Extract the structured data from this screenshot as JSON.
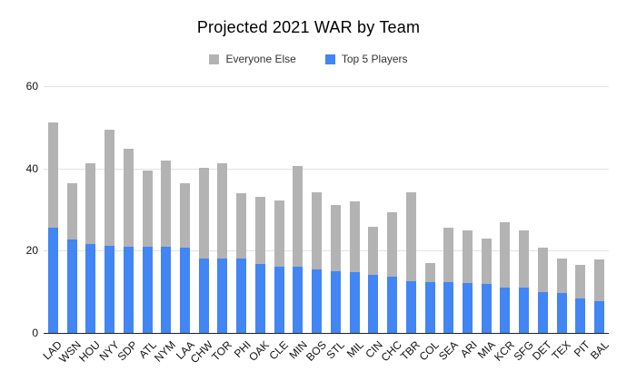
{
  "title": "Projected 2021 WAR by Team",
  "legend": {
    "items": [
      {
        "label": "Everyone Else",
        "color": "#b3b3b3"
      },
      {
        "label": "Top 5 Players",
        "color": "#4285f4"
      }
    ]
  },
  "colors": {
    "top5_blue": "#4285f4",
    "everyone_else_gray": "#b3b3b3",
    "gridline": "#e2e2e2",
    "axis_line": "#222222"
  },
  "chart_data": {
    "type": "bar",
    "stacked": true,
    "title": "Projected 2021 WAR by Team",
    "categories": [
      "LAD",
      "WSN",
      "HOU",
      "NYY",
      "SDP",
      "ATL",
      "NYM",
      "LAA",
      "CHW",
      "TOR",
      "PHI",
      "OAK",
      "CLE",
      "MIN",
      "BOS",
      "STL",
      "MIL",
      "CIN",
      "CHC",
      "TBR",
      "COL",
      "SEA",
      "ARI",
      "MIA",
      "KCR",
      "SFG",
      "DET",
      "TEX",
      "PIT",
      "BAL"
    ],
    "series": [
      {
        "name": "Top 5 Players",
        "color": "#4285f4",
        "values": [
          25.7,
          22.7,
          21.6,
          21.2,
          21.0,
          20.9,
          20.9,
          20.8,
          18.2,
          18.1,
          18.0,
          16.8,
          16.1,
          16.0,
          15.4,
          14.9,
          14.8,
          14.2,
          13.7,
          12.5,
          12.4,
          12.3,
          12.1,
          11.9,
          11.1,
          11.0,
          9.9,
          9.8,
          8.4,
          7.8
        ]
      },
      {
        "name": "Everyone Else",
        "color": "#b3b3b3",
        "values": [
          25.5,
          13.6,
          19.7,
          28.3,
          23.8,
          18.7,
          21.1,
          15.6,
          21.9,
          23.2,
          15.9,
          16.4,
          16.0,
          24.5,
          18.7,
          16.1,
          17.1,
          11.6,
          15.7,
          21.6,
          4.7,
          13.2,
          12.8,
          11.1,
          15.8,
          14.0,
          10.9,
          8.3,
          8.1,
          10.1
        ]
      }
    ],
    "totals": [
      51.2,
      36.3,
      41.3,
      49.5,
      44.8,
      39.6,
      42.0,
      36.4,
      40.1,
      41.3,
      33.9,
      33.2,
      32.1,
      40.5,
      34.1,
      31.0,
      31.9,
      25.8,
      29.4,
      34.1,
      17.1,
      25.5,
      24.9,
      23.0,
      26.9,
      25.0,
      20.8,
      18.1,
      16.5,
      17.9
    ],
    "xlabel": "",
    "ylabel": "",
    "ylim": [
      0,
      60
    ],
    "yticks": [
      0,
      20,
      40,
      60
    ],
    "grid": true,
    "legend_position": "top",
    "x_label_rotation_deg": -45
  }
}
